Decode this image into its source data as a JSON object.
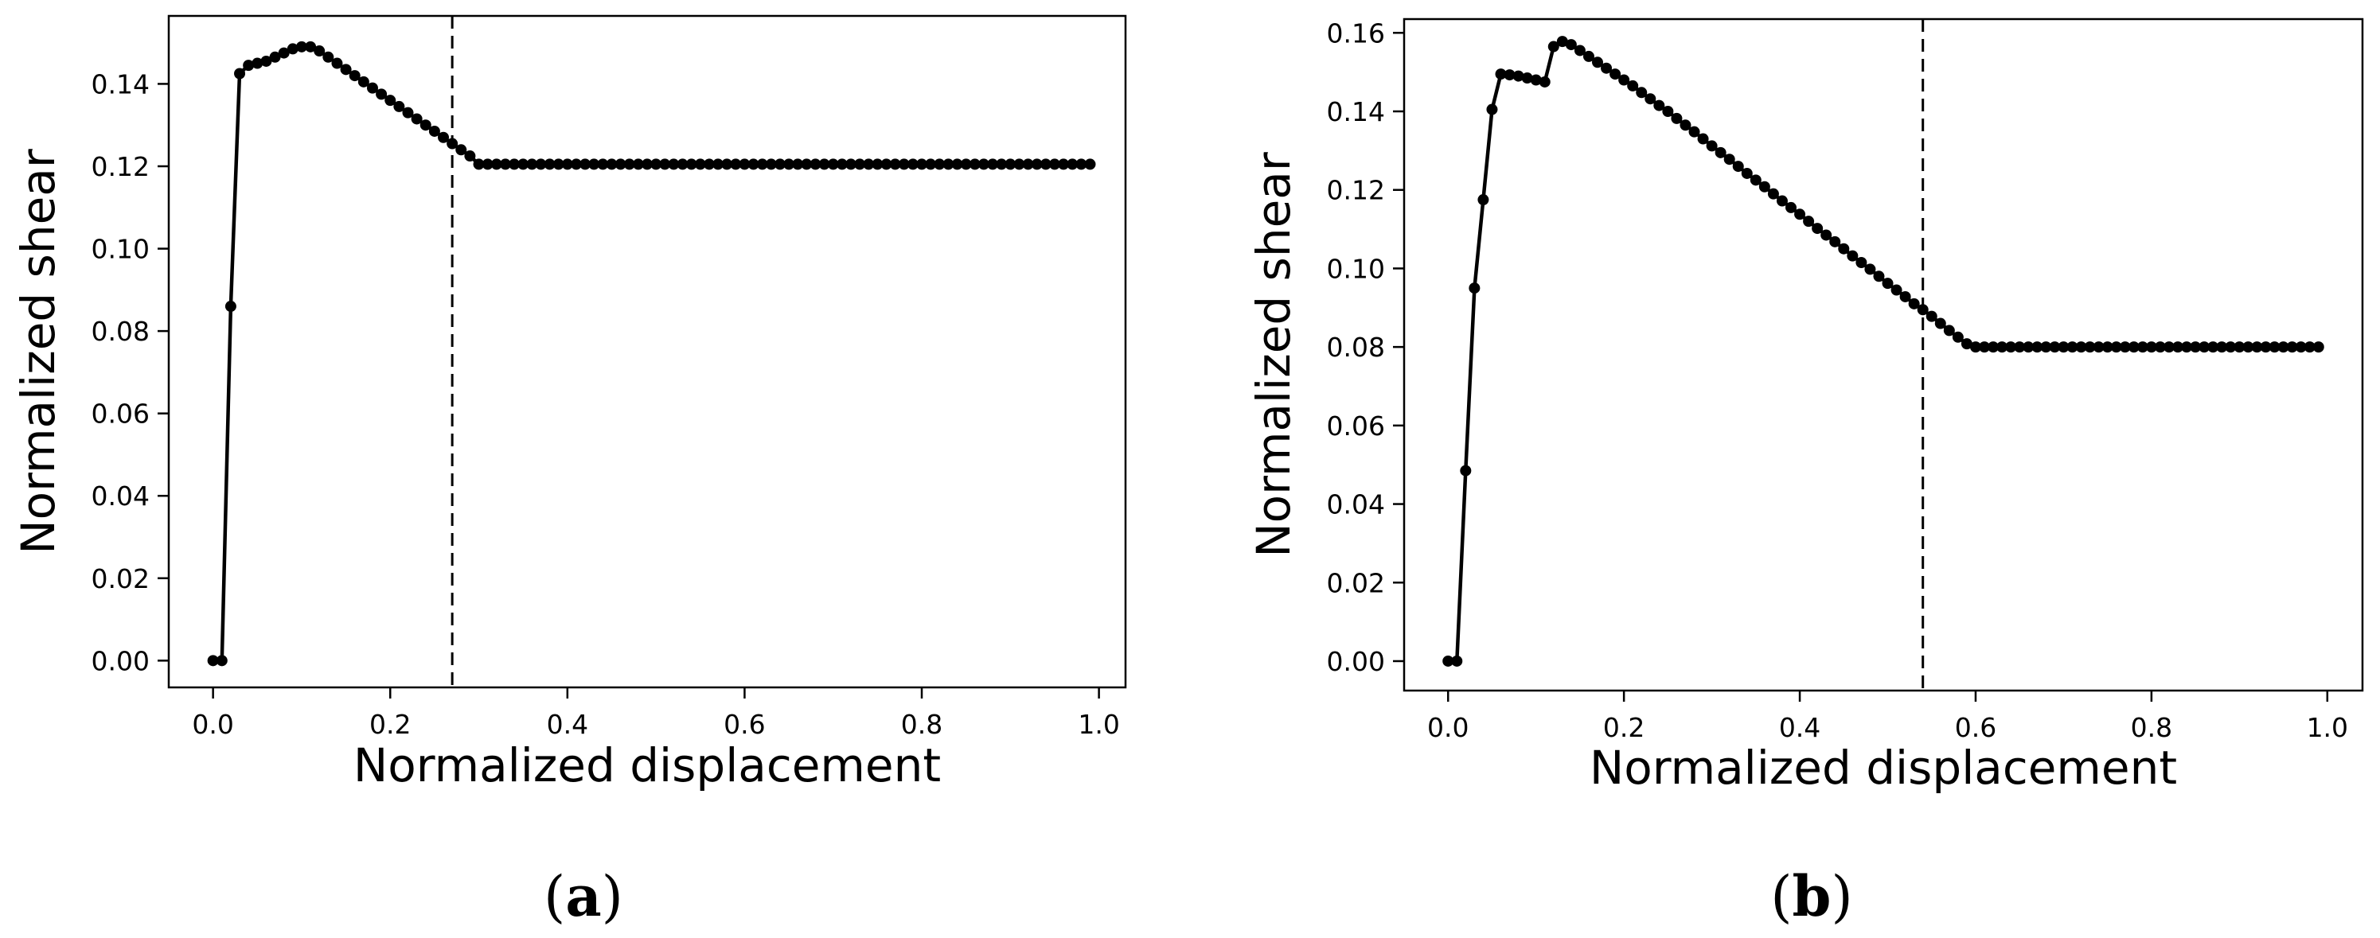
{
  "chart_data": [
    {
      "panel_label": "a",
      "type": "line",
      "title": "",
      "xlabel": "Normalized displacement",
      "ylabel": "Normalized shear",
      "xlim": [
        -0.05,
        1.03
      ],
      "ylim": [
        -0.0065,
        0.1565
      ],
      "xticks": [
        0.0,
        0.2,
        0.4,
        0.6,
        0.8,
        1.0
      ],
      "xtick_labels": [
        "0.0",
        "0.2",
        "0.4",
        "0.6",
        "0.8",
        "1.0"
      ],
      "yticks": [
        0.0,
        0.02,
        0.04,
        0.06,
        0.08,
        0.1,
        0.12,
        0.14
      ],
      "ytick_labels": [
        "0.00",
        "0.02",
        "0.04",
        "0.06",
        "0.08",
        "0.10",
        "0.12",
        "0.14"
      ],
      "grid": false,
      "legend": "none",
      "vline_x": 0.27,
      "series": [
        {
          "marker": "circle",
          "color": "#000000",
          "x": [
            0.0,
            0.01,
            0.02,
            0.03,
            0.04,
            0.05,
            0.06,
            0.07,
            0.08,
            0.09,
            0.1,
            0.11,
            0.12,
            0.13,
            0.14,
            0.15,
            0.16,
            0.17,
            0.18,
            0.19,
            0.2,
            0.21,
            0.22,
            0.23,
            0.24,
            0.25,
            0.26,
            0.27,
            0.28,
            0.29,
            0.3,
            0.31,
            0.32,
            0.33,
            0.34,
            0.35,
            0.36,
            0.37,
            0.38,
            0.39,
            0.4,
            0.41,
            0.42,
            0.43,
            0.44,
            0.45,
            0.46,
            0.47,
            0.48,
            0.49,
            0.5,
            0.51,
            0.52,
            0.53,
            0.54,
            0.55,
            0.56,
            0.57,
            0.58,
            0.59,
            0.6,
            0.61,
            0.62,
            0.63,
            0.64,
            0.65,
            0.66,
            0.67,
            0.68,
            0.69,
            0.7,
            0.71,
            0.72,
            0.73,
            0.74,
            0.75,
            0.76,
            0.77,
            0.78,
            0.79,
            0.8,
            0.81,
            0.82,
            0.83,
            0.84,
            0.85,
            0.86,
            0.87,
            0.88,
            0.89,
            0.9,
            0.91,
            0.92,
            0.93,
            0.94,
            0.95,
            0.96,
            0.97,
            0.98,
            0.99
          ],
          "y": [
            0.0,
            0.0,
            0.086,
            0.1425,
            0.1445,
            0.145,
            0.1455,
            0.1465,
            0.1475,
            0.1485,
            0.149,
            0.149,
            0.148,
            0.1465,
            0.145,
            0.1435,
            0.142,
            0.1405,
            0.139,
            0.1375,
            0.136,
            0.1345,
            0.133,
            0.1315,
            0.13,
            0.1285,
            0.127,
            0.1255,
            0.124,
            0.1225,
            0.1205,
            0.1205,
            0.1205,
            0.1205,
            0.1205,
            0.1205,
            0.1205,
            0.1205,
            0.1205,
            0.1205,
            0.1205,
            0.1205,
            0.1205,
            0.1205,
            0.1205,
            0.1205,
            0.1205,
            0.1205,
            0.1205,
            0.1205,
            0.1205,
            0.1205,
            0.1205,
            0.1205,
            0.1205,
            0.1205,
            0.1205,
            0.1205,
            0.1205,
            0.1205,
            0.1205,
            0.1205,
            0.1205,
            0.1205,
            0.1205,
            0.1205,
            0.1205,
            0.1205,
            0.1205,
            0.1205,
            0.1205,
            0.1205,
            0.1205,
            0.1205,
            0.1205,
            0.1205,
            0.1205,
            0.1205,
            0.1205,
            0.1205,
            0.1205,
            0.1205,
            0.1205,
            0.1205,
            0.1205,
            0.1205,
            0.1205,
            0.1205,
            0.1205,
            0.1205,
            0.1205,
            0.1205,
            0.1205,
            0.1205,
            0.1205,
            0.1205,
            0.1205,
            0.1205,
            0.1205,
            0.1205
          ]
        }
      ]
    },
    {
      "panel_label": "b",
      "type": "line",
      "title": "",
      "xlabel": "Normalized displacement",
      "ylabel": "Normalized shear",
      "xlim": [
        -0.05,
        1.04
      ],
      "ylim": [
        -0.0075,
        0.1635
      ],
      "xticks": [
        0.0,
        0.2,
        0.4,
        0.6,
        0.8,
        1.0
      ],
      "xtick_labels": [
        "0.0",
        "0.2",
        "0.4",
        "0.6",
        "0.8",
        "1.0"
      ],
      "yticks": [
        0.0,
        0.02,
        0.04,
        0.06,
        0.08,
        0.1,
        0.12,
        0.14,
        0.16
      ],
      "ytick_labels": [
        "0.00",
        "0.02",
        "0.04",
        "0.06",
        "0.08",
        "0.10",
        "0.12",
        "0.14",
        "0.16"
      ],
      "grid": false,
      "legend": "none",
      "vline_x": 0.54,
      "series": [
        {
          "marker": "circle",
          "color": "#000000",
          "x": [
            0.0,
            0.01,
            0.02,
            0.03,
            0.04,
            0.05,
            0.06,
            0.07,
            0.08,
            0.09,
            0.1,
            0.11,
            0.12,
            0.13,
            0.14,
            0.15,
            0.16,
            0.17,
            0.18,
            0.19,
            0.2,
            0.21,
            0.22,
            0.23,
            0.24,
            0.25,
            0.26,
            0.27,
            0.28,
            0.29,
            0.3,
            0.31,
            0.32,
            0.33,
            0.34,
            0.35,
            0.36,
            0.37,
            0.38,
            0.39,
            0.4,
            0.41,
            0.42,
            0.43,
            0.44,
            0.45,
            0.46,
            0.47,
            0.48,
            0.49,
            0.5,
            0.51,
            0.52,
            0.53,
            0.54,
            0.55,
            0.56,
            0.57,
            0.58,
            0.59,
            0.6,
            0.61,
            0.62,
            0.63,
            0.64,
            0.65,
            0.66,
            0.67,
            0.68,
            0.69,
            0.7,
            0.71,
            0.72,
            0.73,
            0.74,
            0.75,
            0.76,
            0.77,
            0.78,
            0.79,
            0.8,
            0.81,
            0.82,
            0.83,
            0.84,
            0.85,
            0.86,
            0.87,
            0.88,
            0.89,
            0.9,
            0.91,
            0.92,
            0.93,
            0.94,
            0.95,
            0.96,
            0.97,
            0.98,
            0.99
          ],
          "y": [
            0.0,
            0.0,
            0.0485,
            0.095,
            0.1175,
            0.1405,
            0.1495,
            0.1493,
            0.149,
            0.1485,
            0.148,
            0.1475,
            0.1565,
            0.1578,
            0.157,
            0.1555,
            0.154,
            0.1525,
            0.151,
            0.1495,
            0.148,
            0.1465,
            0.1448,
            0.1432,
            0.1415,
            0.14,
            0.1382,
            0.1365,
            0.1348,
            0.133,
            0.1312,
            0.1295,
            0.1278,
            0.126,
            0.1242,
            0.1225,
            0.1208,
            0.119,
            0.1172,
            0.1155,
            0.1138,
            0.112,
            0.1102,
            0.1085,
            0.1068,
            0.105,
            0.1032,
            0.1015,
            0.0998,
            0.098,
            0.0962,
            0.0945,
            0.0928,
            0.091,
            0.0895,
            0.0878,
            0.086,
            0.0842,
            0.0825,
            0.0808,
            0.08,
            0.08,
            0.08,
            0.08,
            0.08,
            0.08,
            0.08,
            0.08,
            0.08,
            0.08,
            0.08,
            0.08,
            0.08,
            0.08,
            0.08,
            0.08,
            0.08,
            0.08,
            0.08,
            0.08,
            0.08,
            0.08,
            0.08,
            0.08,
            0.08,
            0.08,
            0.08,
            0.08,
            0.08,
            0.08,
            0.08,
            0.08,
            0.08,
            0.08,
            0.08,
            0.08,
            0.08,
            0.08,
            0.08,
            0.08
          ]
        }
      ]
    }
  ]
}
